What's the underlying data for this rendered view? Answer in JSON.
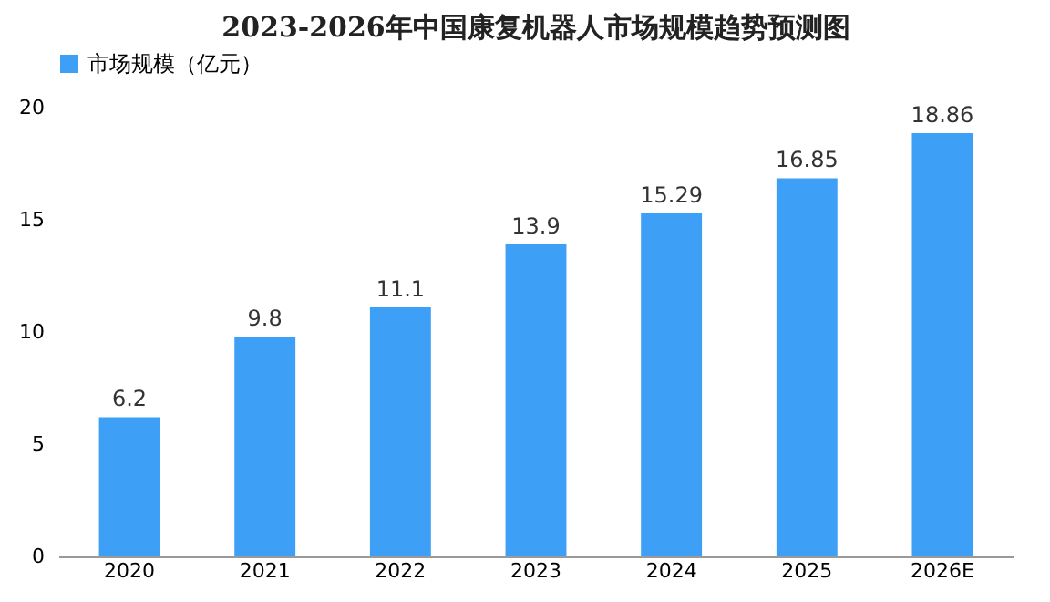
{
  "chart_data": {
    "type": "bar",
    "title": "2023-2026年中国康复机器人市场规模趋势预测图",
    "categories": [
      "2020",
      "2021",
      "2022",
      "2023",
      "2024",
      "2025",
      "2026E"
    ],
    "series": [
      {
        "name": "市场规模（亿元）",
        "color": "#3d9ff5",
        "values": [
          6.2,
          9.8,
          11.1,
          13.9,
          15.29,
          16.85,
          18.86
        ]
      }
    ],
    "ylim": [
      0,
      20
    ],
    "yticks": [
      0,
      5,
      10,
      15,
      20
    ],
    "grid": false,
    "legend": "top",
    "data_labels": true
  }
}
